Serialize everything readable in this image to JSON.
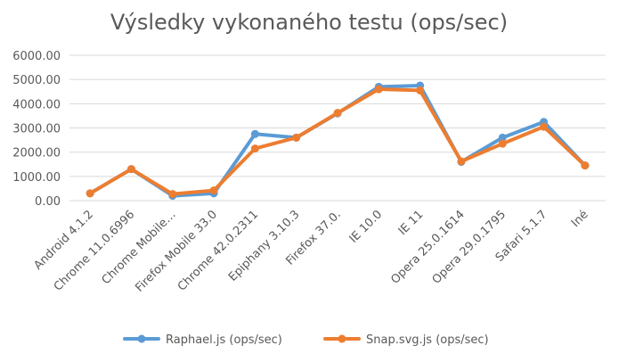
{
  "chart_data": {
    "type": "line",
    "title": "Výsledky vykonaného testu (ops/sec)",
    "xlabel": "",
    "ylabel": "",
    "categories": [
      "Android 4.1.2",
      "Chrome 11.0.6996",
      "Chrome Mobile…",
      "Firefox Mobile 33.0",
      "Chrome 42.0.2311",
      "Epiphany 3.10.3",
      "Firefox 37.0.",
      "IE 10.0",
      "IE 11",
      "Opera 25.0.1614",
      "Opera 29.0.1795",
      "Safari 5.1.7",
      "Iné"
    ],
    "ylim": [
      0,
      6000
    ],
    "yticks": [
      "0.00",
      "1000.00",
      "2000.00",
      "3000.00",
      "4000.00",
      "5000.00",
      "6000.00"
    ],
    "grid": true,
    "legend_position": "bottom",
    "series": [
      {
        "name": "Raphael.js (ops/sec)",
        "color": "#5b9bd5",
        "values": [
          300,
          1300,
          200,
          300,
          2750,
          2600,
          3600,
          4700,
          4750,
          1600,
          2600,
          3250,
          1450
        ]
      },
      {
        "name": "Snap.svg.js (ops/sec)",
        "color": "#ed7d31",
        "values": [
          300,
          1300,
          270,
          420,
          2150,
          2600,
          3620,
          4600,
          4550,
          1620,
          2350,
          3050,
          1450
        ]
      }
    ]
  }
}
